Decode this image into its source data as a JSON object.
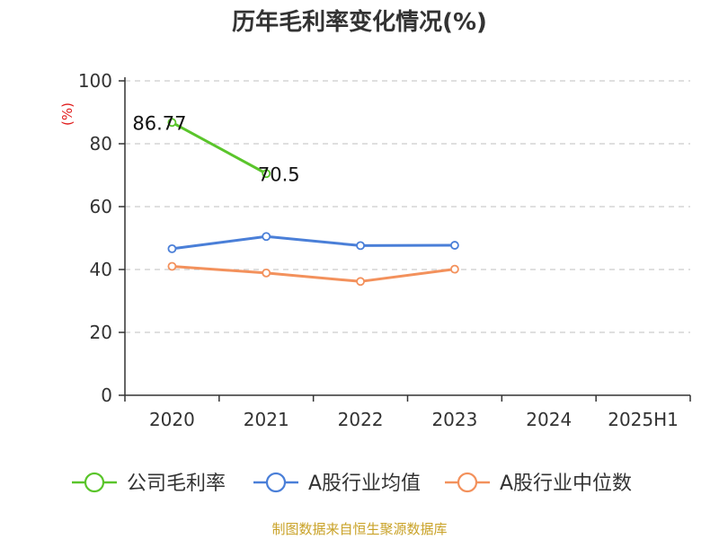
{
  "chart_data": {
    "type": "line",
    "title": "历年毛利率变化情况(%)",
    "ylabel": "(%)",
    "xlabel": "",
    "ylim": [
      0,
      100
    ],
    "yticks": [
      0,
      20,
      40,
      60,
      80,
      100
    ],
    "categories": [
      "2020",
      "2021",
      "2022",
      "2023",
      "2024",
      "2025H1"
    ],
    "grid": true,
    "legend_position": "bottom",
    "series": [
      {
        "name": "公司毛利率",
        "color": "#5ac52b",
        "values": [
          86.77,
          70.5,
          null,
          null,
          null,
          null
        ],
        "labels": [
          "86.77",
          "70.5"
        ]
      },
      {
        "name": "A股行业均值",
        "color": "#4a7fd8",
        "values": [
          46.6,
          50.5,
          47.6,
          47.7,
          null,
          null
        ]
      },
      {
        "name": "A股行业中位数",
        "color": "#f3915c",
        "values": [
          41.0,
          38.9,
          36.2,
          40.1,
          null,
          null
        ]
      }
    ]
  },
  "footer": {
    "source": "制图数据来自恒生聚源数据库"
  },
  "colors": {
    "unit": "#e01b1b",
    "source": "#c9a227",
    "grid": "#cccccc",
    "axis": "#333333"
  }
}
